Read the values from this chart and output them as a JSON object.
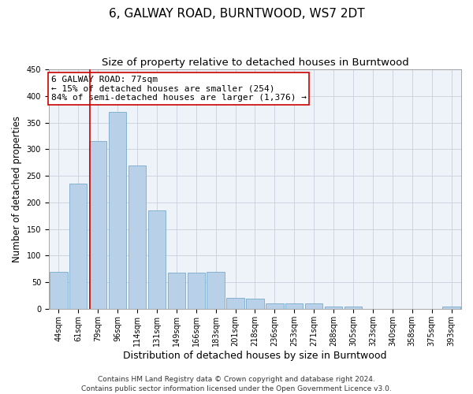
{
  "title": "6, GALWAY ROAD, BURNTWOOD, WS7 2DT",
  "subtitle": "Size of property relative to detached houses in Burntwood",
  "xlabel": "Distribution of detached houses by size in Burntwood",
  "ylabel": "Number of detached properties",
  "bar_color": "#b8d0e8",
  "bar_edge_color": "#7aaacb",
  "background_color": "#eef2f9",
  "grid_color": "#c8d0dc",
  "categories": [
    "44sqm",
    "61sqm",
    "79sqm",
    "96sqm",
    "114sqm",
    "131sqm",
    "149sqm",
    "166sqm",
    "183sqm",
    "201sqm",
    "218sqm",
    "236sqm",
    "253sqm",
    "271sqm",
    "288sqm",
    "305sqm",
    "323sqm",
    "340sqm",
    "358sqm",
    "375sqm",
    "393sqm"
  ],
  "values": [
    70,
    235,
    315,
    370,
    270,
    185,
    68,
    68,
    70,
    20,
    19,
    10,
    10,
    11,
    5,
    4,
    0,
    0,
    0,
    0,
    4
  ],
  "ylim": [
    0,
    450
  ],
  "yticks": [
    0,
    50,
    100,
    150,
    200,
    250,
    300,
    350,
    400,
    450
  ],
  "vline_x": 1.575,
  "vline_color": "#cc0000",
  "annotation_text": "6 GALWAY ROAD: 77sqm\n← 15% of detached houses are smaller (254)\n84% of semi-detached houses are larger (1,376) →",
  "annotation_box_color": "#cc0000",
  "footer_line1": "Contains HM Land Registry data © Crown copyright and database right 2024.",
  "footer_line2": "Contains public sector information licensed under the Open Government Licence v3.0.",
  "title_fontsize": 11,
  "subtitle_fontsize": 9.5,
  "xlabel_fontsize": 9,
  "ylabel_fontsize": 8.5,
  "tick_fontsize": 7,
  "annotation_fontsize": 8,
  "footer_fontsize": 6.5
}
